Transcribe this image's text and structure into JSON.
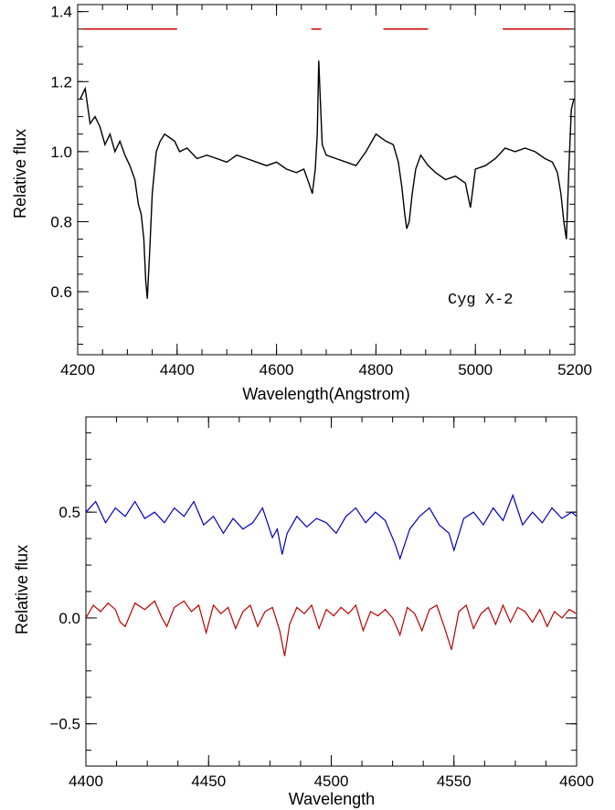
{
  "chart_data": [
    {
      "type": "line",
      "title": "",
      "xlabel": "Wavelength(Angstrom)",
      "ylabel": "Relative flux",
      "xlim": [
        4200,
        5200
      ],
      "ylim": [
        0.42,
        1.42
      ],
      "x_ticks": [
        4200,
        4400,
        4600,
        4800,
        5000,
        5200
      ],
      "x_tick_labels": [
        "4200",
        "4400",
        "4600",
        "4800",
        "5000",
        "5200"
      ],
      "y_ticks": [
        0.6,
        0.8,
        1.0,
        1.2,
        1.4
      ],
      "y_tick_labels": [
        "0.6",
        "0.8",
        "1.0",
        "1.2",
        "1.4"
      ],
      "annotation": "Cyg X-2",
      "line_color": "#000000",
      "marker_color": "#cc0000",
      "marker_level": 1.35,
      "marker_segments": [
        [
          4210,
          4400
        ],
        [
          4670,
          4690
        ],
        [
          4815,
          4905
        ],
        [
          5055,
          5190
        ]
      ],
      "series": [
        {
          "x": [
            4205,
            4215,
            4225,
            4235,
            4245,
            4255,
            4265,
            4275,
            4285,
            4295,
            4305,
            4315,
            4322,
            4328,
            4333,
            4337,
            4340,
            4345,
            4350,
            4358,
            4366,
            4375,
            4385,
            4395,
            4405,
            4420,
            4440,
            4460,
            4480,
            4500,
            4520,
            4540,
            4560,
            4580,
            4600,
            4620,
            4640,
            4655,
            4665,
            4672,
            4678,
            4682,
            4685,
            4688,
            4692,
            4700,
            4720,
            4740,
            4760,
            4780,
            4800,
            4820,
            4835,
            4845,
            4852,
            4858,
            4862,
            4867,
            4873,
            4880,
            4890,
            4905,
            4920,
            4940,
            4960,
            4980,
            4990,
            5000,
            5020,
            5040,
            5060,
            5080,
            5100,
            5120,
            5140,
            5155,
            5165,
            5172,
            5178,
            5183,
            5188,
            5193,
            5198
          ],
          "y": [
            1.15,
            1.18,
            1.08,
            1.1,
            1.07,
            1.02,
            1.05,
            1.0,
            1.03,
            0.99,
            0.96,
            0.92,
            0.85,
            0.82,
            0.75,
            0.63,
            0.58,
            0.72,
            0.88,
            1.0,
            1.03,
            1.05,
            1.04,
            1.03,
            1.0,
            1.01,
            0.98,
            0.99,
            0.98,
            0.97,
            0.99,
            0.98,
            0.97,
            0.96,
            0.97,
            0.95,
            0.94,
            0.95,
            0.91,
            0.88,
            0.95,
            1.05,
            1.26,
            1.15,
            1.02,
            0.99,
            0.98,
            0.97,
            0.96,
            1.0,
            1.05,
            1.03,
            1.02,
            0.97,
            0.9,
            0.82,
            0.78,
            0.8,
            0.88,
            0.95,
            0.99,
            0.96,
            0.94,
            0.92,
            0.93,
            0.91,
            0.84,
            0.95,
            0.96,
            0.98,
            1.01,
            1.0,
            1.01,
            1.0,
            0.98,
            0.97,
            0.94,
            0.88,
            0.8,
            0.75,
            0.95,
            1.12,
            1.15
          ]
        }
      ]
    },
    {
      "type": "line",
      "title": "",
      "xlabel": "Wavelength",
      "ylabel": "Relative flux",
      "xlim": [
        4400,
        4600
      ],
      "ylim": [
        -0.7,
        0.95
      ],
      "x_ticks": [
        4400,
        4450,
        4500,
        4550,
        4600
      ],
      "x_tick_labels": [
        "4400",
        "4450",
        "4500",
        "4550",
        "4600"
      ],
      "y_ticks": [
        -0.5,
        0.0,
        0.5
      ],
      "y_tick_labels": [
        "−0.5",
        "0.0",
        "0.5"
      ],
      "series": [
        {
          "color": "#0000bb",
          "x": [
            4400,
            4404,
            4408,
            4412,
            4416,
            4420,
            4424,
            4428,
            4432,
            4436,
            4440,
            4444,
            4448,
            4452,
            4456,
            4460,
            4464,
            4468,
            4472,
            4476,
            4478,
            4480,
            4482,
            4486,
            4490,
            4494,
            4498,
            4502,
            4506,
            4510,
            4514,
            4518,
            4522,
            4526,
            4528,
            4532,
            4536,
            4540,
            4544,
            4548,
            4550,
            4554,
            4558,
            4562,
            4566,
            4570,
            4574,
            4578,
            4582,
            4586,
            4590,
            4594,
            4598,
            4600
          ],
          "y": [
            0.5,
            0.55,
            0.45,
            0.52,
            0.48,
            0.55,
            0.47,
            0.5,
            0.45,
            0.52,
            0.48,
            0.55,
            0.44,
            0.48,
            0.4,
            0.47,
            0.42,
            0.45,
            0.52,
            0.38,
            0.42,
            0.3,
            0.4,
            0.48,
            0.43,
            0.47,
            0.45,
            0.4,
            0.48,
            0.52,
            0.45,
            0.5,
            0.46,
            0.35,
            0.28,
            0.42,
            0.48,
            0.52,
            0.44,
            0.4,
            0.32,
            0.47,
            0.5,
            0.44,
            0.52,
            0.46,
            0.58,
            0.44,
            0.5,
            0.45,
            0.52,
            0.47,
            0.5,
            0.48
          ]
        },
        {
          "color": "#bb0000",
          "x": [
            4400,
            4403,
            4406,
            4409,
            4412,
            4414,
            4416,
            4420,
            4424,
            4428,
            4431,
            4433,
            4436,
            4440,
            4443,
            4446,
            4449,
            4452,
            4455,
            4458,
            4461,
            4464,
            4467,
            4470,
            4473,
            4476,
            4479,
            4481,
            4483,
            4486,
            4489,
            4492,
            4495,
            4498,
            4501,
            4504,
            4507,
            4510,
            4513,
            4516,
            4519,
            4522,
            4525,
            4528,
            4531,
            4534,
            4537,
            4540,
            4543,
            4546,
            4549,
            4552,
            4555,
            4558,
            4561,
            4564,
            4567,
            4570,
            4573,
            4576,
            4579,
            4582,
            4585,
            4588,
            4591,
            4594,
            4597,
            4600
          ],
          "y": [
            0.0,
            0.06,
            0.03,
            0.07,
            0.04,
            -0.02,
            -0.04,
            0.07,
            0.04,
            0.08,
            0.0,
            -0.04,
            0.05,
            0.08,
            0.03,
            0.06,
            -0.07,
            0.06,
            0.02,
            0.05,
            -0.05,
            0.03,
            0.06,
            -0.04,
            0.03,
            0.05,
            -0.06,
            -0.18,
            -0.03,
            0.05,
            0.02,
            0.06,
            -0.05,
            0.04,
            0.01,
            0.05,
            0.02,
            0.06,
            -0.06,
            0.03,
            0.01,
            0.04,
            0.0,
            -0.08,
            0.05,
            0.02,
            -0.06,
            0.04,
            0.06,
            -0.04,
            -0.15,
            0.03,
            0.06,
            -0.05,
            0.02,
            0.05,
            -0.03,
            0.06,
            -0.02,
            0.05,
            0.03,
            -0.02,
            0.04,
            -0.04,
            0.03,
            0.0,
            0.04,
            0.02
          ]
        }
      ]
    }
  ]
}
